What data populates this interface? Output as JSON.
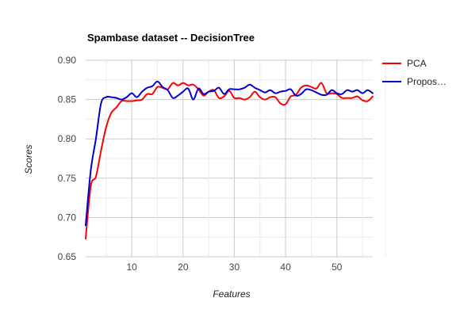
{
  "chart_data": {
    "type": "line",
    "title": "Spambase dataset -- DecisionTree",
    "xlabel": "Features",
    "ylabel": "Scores",
    "xlim": [
      1,
      57
    ],
    "ylim": [
      0.65,
      0.9
    ],
    "xticks": [
      10,
      20,
      30,
      40,
      50
    ],
    "yticks": [
      0.65,
      0.7,
      0.75,
      0.8,
      0.85,
      0.9
    ],
    "ytick_labels": [
      "0.65",
      "0.70",
      "0.75",
      "0.80",
      "0.85",
      "0.90"
    ],
    "grid": true,
    "legend_position": "right",
    "x": [
      1,
      2,
      3,
      4,
      5,
      6,
      7,
      8,
      9,
      10,
      11,
      12,
      13,
      14,
      15,
      16,
      17,
      18,
      19,
      20,
      21,
      22,
      23,
      24,
      25,
      26,
      27,
      28,
      29,
      30,
      31,
      32,
      33,
      34,
      35,
      36,
      37,
      38,
      39,
      40,
      41,
      42,
      43,
      44,
      45,
      46,
      47,
      48,
      49,
      50,
      51,
      52,
      53,
      54,
      55,
      56,
      57
    ],
    "series": [
      {
        "name": "PCA",
        "color": "#ff0000",
        "values": [
          0.673,
          0.74,
          0.752,
          0.785,
          0.815,
          0.833,
          0.84,
          0.848,
          0.848,
          0.848,
          0.849,
          0.85,
          0.857,
          0.857,
          0.866,
          0.865,
          0.863,
          0.871,
          0.868,
          0.871,
          0.868,
          0.869,
          0.863,
          0.855,
          0.86,
          0.862,
          0.852,
          0.854,
          0.861,
          0.852,
          0.852,
          0.85,
          0.853,
          0.86,
          0.853,
          0.85,
          0.853,
          0.853,
          0.845,
          0.844,
          0.854,
          0.856,
          0.865,
          0.868,
          0.866,
          0.864,
          0.871,
          0.858,
          0.858,
          0.857,
          0.852,
          0.852,
          0.852,
          0.854,
          0.849,
          0.848,
          0.854
        ]
      },
      {
        "name": "Propos…",
        "color": "#0000cc",
        "values": [
          0.69,
          0.76,
          0.8,
          0.845,
          0.853,
          0.853,
          0.852,
          0.85,
          0.853,
          0.858,
          0.853,
          0.86,
          0.865,
          0.867,
          0.873,
          0.866,
          0.862,
          0.852,
          0.855,
          0.86,
          0.864,
          0.85,
          0.864,
          0.857,
          0.86,
          0.861,
          0.865,
          0.857,
          0.863,
          0.863,
          0.863,
          0.865,
          0.869,
          0.865,
          0.862,
          0.859,
          0.862,
          0.858,
          0.86,
          0.861,
          0.863,
          0.855,
          0.857,
          0.863,
          0.862,
          0.859,
          0.856,
          0.856,
          0.862,
          0.858,
          0.857,
          0.862,
          0.86,
          0.862,
          0.858,
          0.862,
          0.858
        ]
      }
    ]
  }
}
